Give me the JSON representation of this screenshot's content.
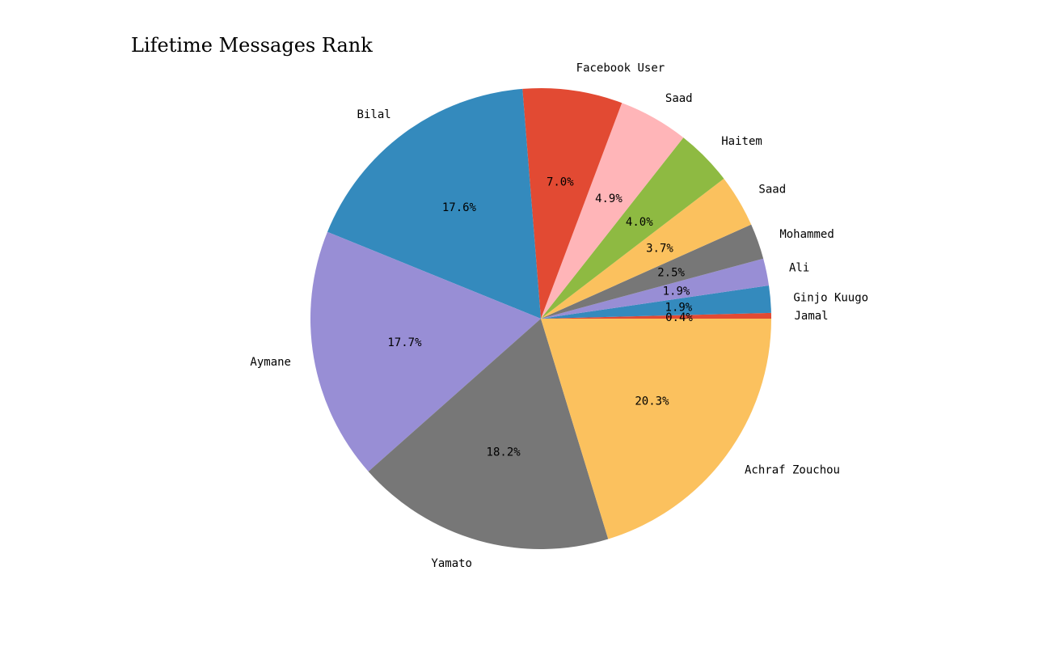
{
  "chart_data": {
    "type": "pie",
    "title": "Lifetime Messages Rank",
    "start_angle_deg": 0,
    "direction": "counterclockwise",
    "slices": [
      {
        "label": "Jamal",
        "percent": 0.4,
        "color": "#E24A33"
      },
      {
        "label": "Ginjo Kuugo",
        "percent": 1.9,
        "color": "#348ABD"
      },
      {
        "label": "Ali",
        "percent": 1.9,
        "color": "#988ED5"
      },
      {
        "label": "Mohammed",
        "percent": 2.5,
        "color": "#777777"
      },
      {
        "label": "Saad",
        "percent": 3.7,
        "color": "#FBC15E"
      },
      {
        "label": "Haitem",
        "percent": 4.0,
        "color": "#8EBA42"
      },
      {
        "label": "Saad",
        "percent": 4.9,
        "color": "#FFB5B8"
      },
      {
        "label": "Facebook User",
        "percent": 7.0,
        "color": "#E24A33"
      },
      {
        "label": "Bilal",
        "percent": 17.6,
        "color": "#348ABD"
      },
      {
        "label": "Aymane",
        "percent": 17.7,
        "color": "#988ED5"
      },
      {
        "label": "Yamato",
        "percent": 18.2,
        "color": "#777777"
      },
      {
        "label": "Achraf Zouchou",
        "percent": 20.3,
        "color": "#FBC15E"
      }
    ]
  }
}
